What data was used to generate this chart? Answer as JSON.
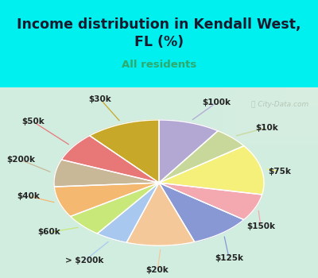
{
  "title": "Income distribution in Kendall West,\nFL (%)",
  "subtitle": "All residents",
  "title_color": "#1a1a2e",
  "subtitle_color": "#2eaa6e",
  "bg_cyan": "#00f0f0",
  "chart_bg_from": "#e8f5ee",
  "watermark": "ⓘ City-Data.com",
  "labels": [
    "$100k",
    "$10k",
    "$75k",
    "$150k",
    "$125k",
    "$20k",
    "> $200k",
    "$60k",
    "$40k",
    "$200k",
    "$50k",
    "$30k"
  ],
  "values": [
    9.5,
    5.5,
    13.0,
    7.0,
    9.5,
    10.5,
    5.0,
    6.0,
    8.0,
    7.0,
    7.5,
    11.5
  ],
  "colors": [
    "#b3a8d4",
    "#c8d89a",
    "#f5f07a",
    "#f4a8b0",
    "#8898d4",
    "#f5c89a",
    "#a8c8f0",
    "#c8e87a",
    "#f5b870",
    "#c8b898",
    "#e87878",
    "#c8a828"
  ],
  "label_fontsize": 7.5,
  "startangle": 90,
  "title_fontsize": 12.5,
  "subtitle_fontsize": 9.5
}
